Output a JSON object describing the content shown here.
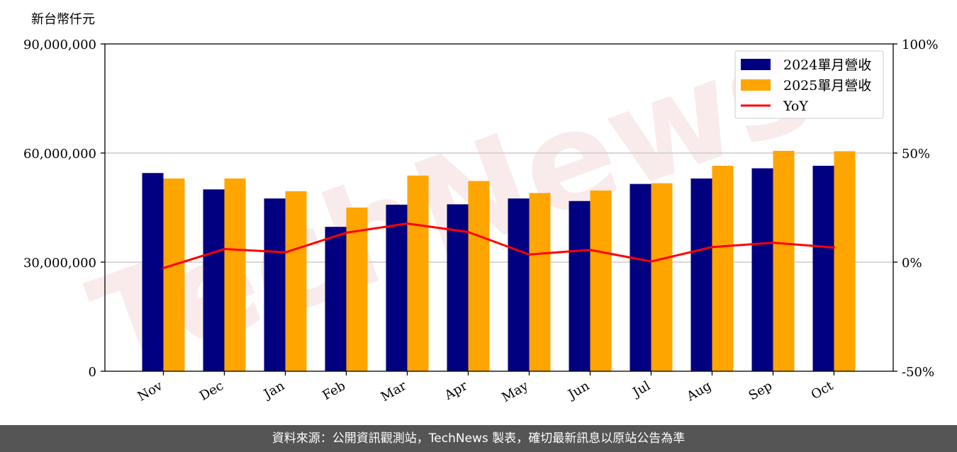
{
  "chart_data": {
    "type": "bar",
    "unit_label": "新台幣仟元",
    "categories": [
      "Nov",
      "Dec",
      "Jan",
      "Feb",
      "Mar",
      "Apr",
      "May",
      "Jun",
      "Jul",
      "Aug",
      "Sep",
      "Oct"
    ],
    "series": [
      {
        "name": "2024單月營收",
        "type": "bar",
        "axis": "left",
        "color": "#000080",
        "values": [
          54500000,
          50000000,
          47500000,
          39700000,
          45800000,
          45900000,
          47500000,
          46800000,
          51500000,
          53000000,
          55800000,
          56500000
        ]
      },
      {
        "name": "2025單月營收",
        "type": "bar",
        "axis": "left",
        "color": "#FFA500",
        "values": [
          53000000,
          53000000,
          49500000,
          45000000,
          53800000,
          52300000,
          49000000,
          49700000,
          51700000,
          56500000,
          60600000,
          60500000
        ]
      },
      {
        "name": "YoY",
        "type": "line",
        "axis": "right",
        "color": "#FF0000",
        "values": [
          -2.7,
          6.0,
          4.5,
          13.5,
          17.7,
          13.8,
          3.5,
          5.6,
          0.3,
          6.9,
          8.9,
          6.7
        ]
      }
    ],
    "y_left": {
      "min": 0,
      "max": 90000000,
      "ticks": [
        0,
        30000000,
        60000000,
        90000000
      ],
      "tick_labels": [
        "0",
        "30,000,000",
        "60,000,000",
        "90,000,000"
      ]
    },
    "y_right": {
      "min": -50,
      "max": 100,
      "ticks": [
        -50,
        0,
        50,
        100
      ],
      "tick_labels": [
        "-50%",
        "0%",
        "50%",
        "100%"
      ]
    },
    "grid": "horizontal",
    "legend_position": "top-right"
  },
  "watermark": "TechNews",
  "footer": {
    "source": "資料來源：公開資訊觀測站，TechNews 製表，確切最新訊息以原站公告為準"
  }
}
